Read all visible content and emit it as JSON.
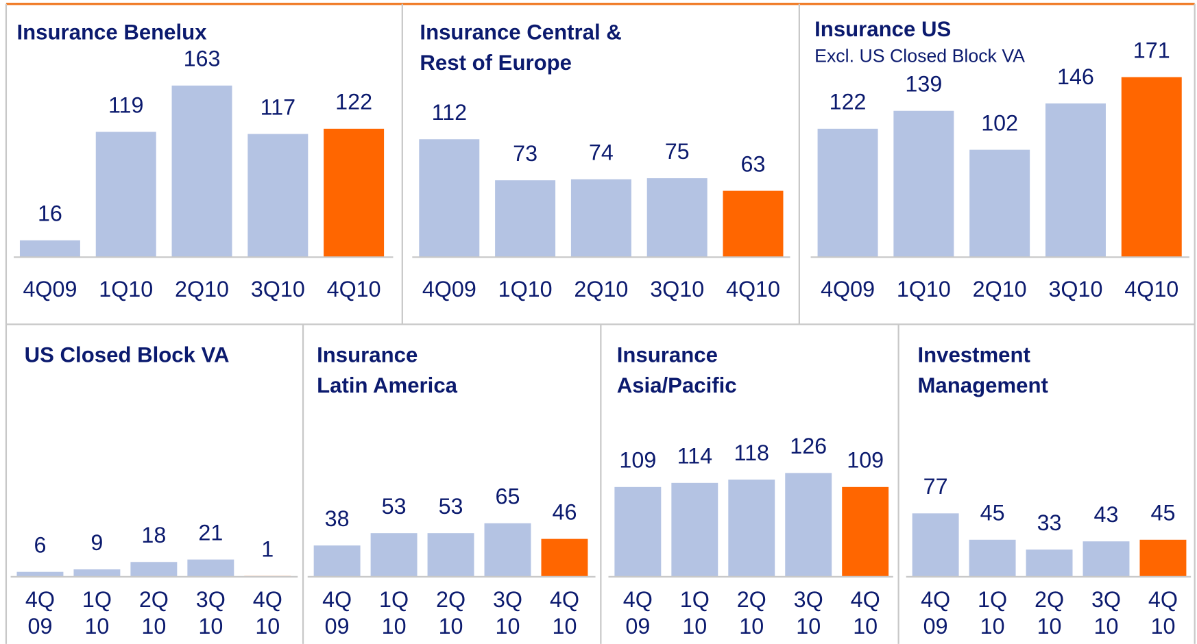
{
  "chart_data": [
    {
      "type": "bar",
      "title": [
        "Insurance Benelux"
      ],
      "categories": [
        "4Q09",
        "1Q10",
        "2Q10",
        "3Q10",
        "4Q10"
      ],
      "values": [
        16,
        119,
        163,
        117,
        122
      ],
      "colors": [
        "#b4c3e3",
        "#b4c3e3",
        "#b4c3e3",
        "#b4c3e3",
        "#ff6600"
      ]
    },
    {
      "type": "bar",
      "title": [
        "Insurance Central &",
        "Rest of Europe"
      ],
      "categories": [
        "4Q09",
        "1Q10",
        "2Q10",
        "3Q10",
        "4Q10"
      ],
      "values": [
        112,
        73,
        74,
        75,
        63
      ],
      "colors": [
        "#b4c3e3",
        "#b4c3e3",
        "#b4c3e3",
        "#b4c3e3",
        "#ff6600"
      ]
    },
    {
      "type": "bar",
      "title": [
        "Insurance US"
      ],
      "subtitle": "Excl. US Closed Block VA",
      "categories": [
        "4Q09",
        "1Q10",
        "2Q10",
        "3Q10",
        "4Q10"
      ],
      "values": [
        122,
        139,
        102,
        146,
        171
      ],
      "colors": [
        "#b4c3e3",
        "#b4c3e3",
        "#b4c3e3",
        "#b4c3e3",
        "#ff6600"
      ]
    },
    {
      "type": "bar",
      "title": [
        "US Closed Block VA"
      ],
      "categories": [
        [
          "4Q",
          "09"
        ],
        [
          "1Q",
          "10"
        ],
        [
          "2Q",
          "10"
        ],
        [
          "3Q",
          "10"
        ],
        [
          "4Q",
          "10"
        ]
      ],
      "values": [
        6,
        9,
        18,
        21,
        1
      ],
      "colors": [
        "#b4c3e3",
        "#b4c3e3",
        "#b4c3e3",
        "#b4c3e3",
        "#ff6600"
      ]
    },
    {
      "type": "bar",
      "title": [
        "Insurance",
        "Latin America"
      ],
      "categories": [
        [
          "4Q",
          "09"
        ],
        [
          "1Q",
          "10"
        ],
        [
          "2Q",
          "10"
        ],
        [
          "3Q",
          "10"
        ],
        [
          "4Q",
          "10"
        ]
      ],
      "values": [
        38,
        53,
        53,
        65,
        46
      ],
      "colors": [
        "#b4c3e3",
        "#b4c3e3",
        "#b4c3e3",
        "#b4c3e3",
        "#ff6600"
      ]
    },
    {
      "type": "bar",
      "title": [
        "Insurance",
        "Asia/Pacific"
      ],
      "categories": [
        [
          "4Q",
          "09"
        ],
        [
          "1Q",
          "10"
        ],
        [
          "2Q",
          "10"
        ],
        [
          "3Q",
          "10"
        ],
        [
          "4Q",
          "10"
        ]
      ],
      "values": [
        109,
        114,
        118,
        126,
        109
      ],
      "colors": [
        "#b4c3e3",
        "#b4c3e3",
        "#b4c3e3",
        "#b4c3e3",
        "#ff6600"
      ]
    },
    {
      "type": "bar",
      "title": [
        "Investment",
        "Management"
      ],
      "categories": [
        [
          "4Q",
          "09"
        ],
        [
          "1Q",
          "10"
        ],
        [
          "2Q",
          "10"
        ],
        [
          "3Q",
          "10"
        ],
        [
          "4Q",
          "10"
        ]
      ],
      "values": [
        77,
        45,
        33,
        43,
        45
      ],
      "colors": [
        "#b4c3e3",
        "#b4c3e3",
        "#b4c3e3",
        "#b4c3e3",
        "#ff6600"
      ]
    }
  ]
}
